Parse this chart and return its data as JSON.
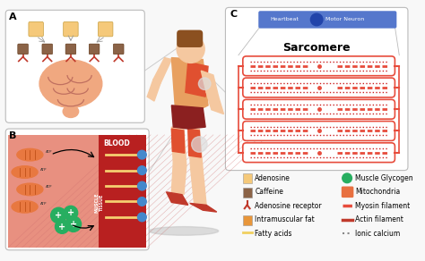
{
  "bg_color": "#f8f8f8",
  "legend_left": [
    {
      "label": "Adenosine",
      "color": "#F5C97A",
      "type": "square"
    },
    {
      "label": "Caffeine",
      "color": "#8B6347",
      "type": "square"
    },
    {
      "label": "Adenosine receptor",
      "color": "#C0392B",
      "type": "Y"
    },
    {
      "label": "Intramuscular fat",
      "color": "#E8963A",
      "type": "square"
    },
    {
      "label": "Fatty acids",
      "color": "#F0D060",
      "type": "line"
    }
  ],
  "legend_right": [
    {
      "label": "Muscle Glycogen",
      "color": "#27AE60",
      "type": "circle"
    },
    {
      "label": "Mitochondria",
      "color": "#E87040",
      "type": "bar"
    },
    {
      "label": "Myosin filament",
      "color": "#E74C3C",
      "type": "line_dash"
    },
    {
      "label": "Actin filament",
      "color": "#C0392B",
      "type": "line"
    },
    {
      "label": "Ionic calcium",
      "color": "#888888",
      "type": "line_dot"
    }
  ],
  "box_A_label": "A",
  "box_B_label": "B",
  "box_C_label": "C",
  "sarcomere_label": "Sarcomere",
  "blood_label": "BLOOD",
  "brain_color": "#F0A880",
  "muscle_bg": "#E89090",
  "blood_bg": "#C03030",
  "runner_skin": "#F5C8A0",
  "runner_shirt": "#E8A060",
  "runner_muscle": "#E05030",
  "runner_shorts": "#8B2020",
  "runner_shoes": "#C0392B",
  "runner_hair": "#8B5020",
  "mito_color": "#E87840",
  "glycogen_color": "#27AE60",
  "fatty_color": "#F5D070",
  "dot_color": "#4488CC"
}
